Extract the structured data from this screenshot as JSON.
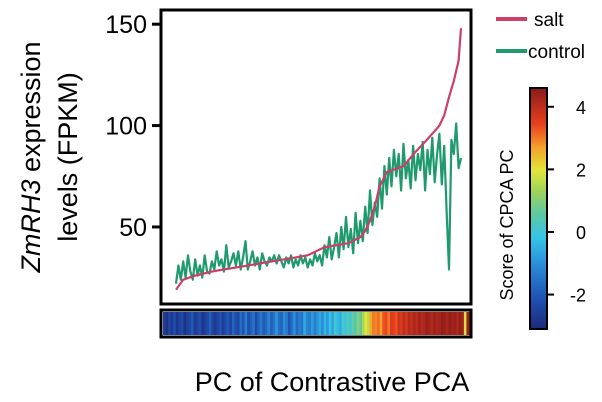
{
  "chart_data": {
    "type": "line",
    "xlabel": "PC of Contrastive PCA",
    "ylabel_line1_italic": "ZmRH3",
    "ylabel_line1_rest": " expression",
    "ylabel_line2": "levels (FPKM)",
    "yticks": [
      50,
      100,
      150
    ],
    "ylim": [
      12,
      157
    ],
    "n_points": 120,
    "legend": {
      "position": "top-right",
      "items": [
        {
          "name": "salt",
          "color": "#cc3f6a"
        },
        {
          "name": "control",
          "color": "#1f9a6e"
        }
      ]
    },
    "series": [
      {
        "name": "salt",
        "color": "#cc3f6a",
        "anchors": [
          [
            0,
            19
          ],
          [
            3,
            24
          ],
          [
            8,
            26
          ],
          [
            15,
            28
          ],
          [
            25,
            30
          ],
          [
            40,
            33
          ],
          [
            55,
            36
          ],
          [
            62,
            40
          ],
          [
            72,
            42
          ],
          [
            77,
            45
          ],
          [
            79,
            48
          ],
          [
            81,
            53
          ],
          [
            83,
            60
          ],
          [
            85,
            70
          ],
          [
            88,
            77
          ],
          [
            95,
            80
          ],
          [
            100,
            87
          ],
          [
            104,
            92
          ],
          [
            107,
            96
          ],
          [
            110,
            100
          ],
          [
            112,
            105
          ],
          [
            114,
            114
          ],
          [
            116,
            122
          ],
          [
            118,
            132
          ],
          [
            119,
            148
          ]
        ]
      },
      {
        "name": "control",
        "color": "#1f9a6e",
        "values": [
          22,
          31,
          24,
          33,
          25,
          36,
          28,
          24,
          34,
          26,
          31,
          25,
          36,
          28,
          27,
          33,
          29,
          38,
          31,
          34,
          28,
          41,
          30,
          33,
          37,
          31,
          38,
          29,
          35,
          43,
          29,
          33,
          38,
          31,
          35,
          29,
          37,
          33,
          31,
          35,
          33,
          36,
          32,
          36,
          33,
          30,
          35,
          32,
          36,
          30,
          34,
          31,
          36,
          32,
          35,
          30,
          34,
          31,
          37,
          33,
          36,
          31,
          41,
          35,
          45,
          34,
          40,
          47,
          35,
          50,
          39,
          55,
          40,
          49,
          37,
          57,
          42,
          53,
          43,
          60,
          47,
          68,
          51,
          62,
          55,
          74,
          59,
          80,
          66,
          84,
          70,
          88,
          75,
          86,
          68,
          91,
          74,
          83,
          69,
          90,
          73,
          86,
          78,
          92,
          68,
          88,
          76,
          94,
          72,
          86,
          96,
          71,
          90,
          58,
          29,
          93,
          86,
          101,
          79,
          84
        ]
      }
    ],
    "colorbar": {
      "label": "Score of CPCA PC",
      "ticks": [
        "4",
        "2",
        "0",
        "-2"
      ],
      "tick_values": [
        4,
        2,
        0,
        -2
      ],
      "range": [
        -3.1,
        4.6
      ],
      "colormap": "jet"
    },
    "color_strip_scores": [
      -2.6,
      -2.9,
      -2.4,
      -2.7,
      -2.2,
      -2.8,
      -2.5,
      -2.3,
      -2.9,
      -2.6,
      -2.4,
      -2.0,
      -2.7,
      -2.5,
      -2.2,
      -2.8,
      -2.6,
      -2.3,
      -1.9,
      -2.5,
      -2.7,
      -2.4,
      -2.1,
      -2.6,
      -2.3,
      -2.0,
      -2.5,
      -1.8,
      -2.2,
      -2.4,
      -1.6,
      -2.1,
      -1.3,
      -2.2,
      -1.9,
      -1.5,
      -2.3,
      -1.8,
      -1.4,
      -2.0,
      -1.7,
      -1.2,
      -1.9,
      -1.5,
      -0.9,
      -1.6,
      -1.8,
      -1.1,
      -1.4,
      -2.1,
      -1.6,
      -1.0,
      -1.7,
      -1.3,
      -1.5,
      -0.6,
      -1.2,
      -1.4,
      -0.8,
      -1.3,
      -1.0,
      -0.6,
      -1.1,
      -0.4,
      -0.9,
      -0.2,
      -0.7,
      0.1,
      -0.3,
      -0.6,
      0.2,
      -0.1,
      0.4,
      0.0,
      0.7,
      0.3,
      1.1,
      0.6,
      1.4,
      2.0,
      1.6,
      2.6,
      3.0,
      2.9,
      3.1,
      2.7,
      3.3,
      3.4,
      3.0,
      3.6,
      3.5,
      3.3,
      3.8,
      3.6,
      4.0,
      3.7,
      4.1,
      3.9,
      4.2,
      4.0,
      4.3,
      4.1,
      4.2,
      4.4,
      4.3,
      4.1,
      4.4,
      4.2,
      4.3,
      4.5,
      4.4,
      4.2,
      4.5,
      4.3,
      4.4,
      4.2,
      4.5,
      4.3,
      1.8,
      4.4
    ]
  }
}
